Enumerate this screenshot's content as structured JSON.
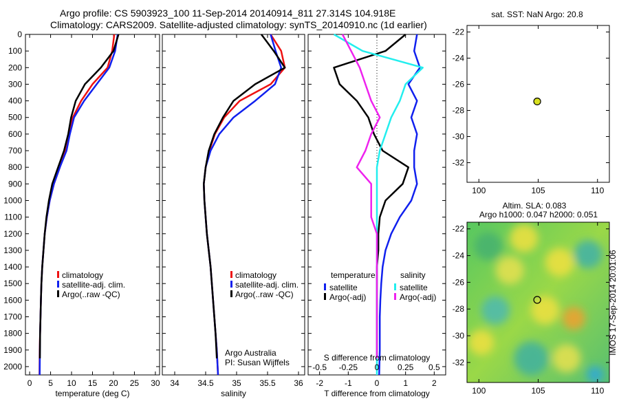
{
  "header": {
    "line1": "Argo profile: CS 5903923_100 11-Sep-2014 20140914_811 27.314S 104.918E",
    "line2": "Climatology: CARS2009. Satellite-adjusted climatology: synTS_20140910.nc (1d earlier)"
  },
  "credit": {
    "line1": "Argo Australia",
    "line2": "PI: Susan Wijffels"
  },
  "imos_stamp": "IMOS 17-Sep-2014 20:01:06",
  "colors": {
    "climatology": "#ee1111",
    "satellite": "#1020ee",
    "argo": "#000000",
    "sal_satellite": "#22eeee",
    "sal_argo": "#ee22ee",
    "marker": "#d8e020"
  },
  "chart_data": [
    {
      "type": "line",
      "xlabel": "temperature (deg C)",
      "ylabel": "",
      "xlim": [
        -1,
        31
      ],
      "ylim": [
        2050,
        0
      ],
      "xticks": [
        0,
        5,
        10,
        15,
        20,
        25,
        30
      ],
      "yticks": [
        0,
        100,
        200,
        300,
        400,
        500,
        600,
        700,
        800,
        900,
        1000,
        1100,
        1200,
        1300,
        1400,
        1500,
        1600,
        1700,
        1800,
        1900,
        2000
      ],
      "legend": [
        "climatology",
        "satellite-adj. clim.",
        "Argo(..raw -QC)"
      ],
      "legend_position": "lower-right",
      "series": [
        {
          "name": "climatology",
          "color": "#ee1111",
          "x": [
            20.2,
            19.7,
            18.6,
            15.0,
            12.3,
            10.3,
            9.3,
            8.4,
            7.2,
            5.8,
            4.8,
            4.1,
            3.6,
            3.3,
            3.0,
            2.8,
            2.7,
            2.6,
            2.5,
            2.4,
            2.35
          ],
          "y": [
            0,
            100,
            200,
            300,
            400,
            500,
            600,
            700,
            800,
            900,
            1000,
            1100,
            1200,
            1300,
            1400,
            1500,
            1600,
            1700,
            1800,
            1900,
            2050
          ]
        },
        {
          "name": "satellite-adj. clim.",
          "color": "#1020ee",
          "x": [
            21.0,
            20.4,
            19.0,
            16.0,
            13.0,
            10.6,
            9.6,
            8.8,
            7.2,
            5.8,
            4.8,
            4.1,
            3.6,
            3.3,
            3.0,
            2.8,
            2.7,
            2.6,
            2.5,
            2.45,
            2.4
          ],
          "y": [
            0,
            100,
            200,
            300,
            400,
            500,
            600,
            700,
            800,
            900,
            1000,
            1100,
            1200,
            1300,
            1400,
            1500,
            1600,
            1700,
            1800,
            1900,
            2050
          ]
        },
        {
          "name": "Argo(..raw -QC)",
          "color": "#000000",
          "x": [
            21.2,
            20.0,
            17.0,
            13.2,
            11.0,
            9.9,
            9.2,
            8.2,
            6.8,
            5.4,
            4.6,
            4.0,
            3.6,
            3.3,
            3.0,
            2.8,
            2.7,
            2.6,
            2.5,
            2.45
          ],
          "y": [
            0,
            100,
            200,
            300,
            400,
            500,
            600,
            700,
            800,
            900,
            1000,
            1100,
            1200,
            1300,
            1400,
            1500,
            1600,
            1700,
            1800,
            1950
          ]
        }
      ]
    },
    {
      "type": "line",
      "xlabel": "salinity",
      "ylabel": "",
      "xlim": [
        33.8,
        36.1
      ],
      "ylim": [
        2050,
        0
      ],
      "xticks": [
        34,
        34.5,
        35,
        35.5,
        36
      ],
      "legend": [
        "climatology",
        "satellite-adj. clim.",
        "Argo(..raw -QC)"
      ],
      "legend_position": "lower-right",
      "series": [
        {
          "name": "climatology",
          "color": "#ee1111",
          "x": [
            35.55,
            35.72,
            35.78,
            35.55,
            35.05,
            34.8,
            34.65,
            34.56,
            34.5,
            34.47,
            34.48,
            34.5,
            34.52,
            34.55,
            34.58,
            34.6,
            34.62,
            34.64,
            34.66,
            34.68,
            34.7
          ],
          "y": [
            0,
            100,
            200,
            300,
            400,
            500,
            600,
            700,
            800,
            900,
            1000,
            1100,
            1200,
            1300,
            1400,
            1500,
            1600,
            1700,
            1800,
            1900,
            2050
          ]
        },
        {
          "name": "satellite-adj. clim.",
          "color": "#1020ee",
          "x": [
            35.55,
            35.63,
            35.72,
            35.62,
            35.3,
            34.95,
            34.72,
            34.58,
            34.5,
            34.47,
            34.48,
            34.5,
            34.52,
            34.55,
            34.58,
            34.6,
            34.62,
            34.64,
            34.66,
            34.68,
            34.7
          ],
          "y": [
            0,
            100,
            200,
            300,
            400,
            500,
            600,
            700,
            800,
            900,
            1000,
            1100,
            1200,
            1300,
            1400,
            1500,
            1600,
            1700,
            1800,
            1900,
            2050
          ]
        },
        {
          "name": "Argo(..raw -QC)",
          "color": "#000000",
          "x": [
            35.4,
            35.6,
            35.78,
            35.3,
            34.95,
            34.78,
            34.64,
            34.55,
            34.5,
            34.47,
            34.48,
            34.5,
            34.52,
            34.55,
            34.58,
            34.6,
            34.62,
            34.64,
            34.66,
            34.68
          ],
          "y": [
            0,
            100,
            200,
            300,
            400,
            500,
            600,
            700,
            800,
            900,
            1000,
            1100,
            1200,
            1300,
            1400,
            1500,
            1600,
            1700,
            1800,
            1950
          ]
        }
      ]
    },
    {
      "type": "line",
      "xlabel": "T difference from climatology",
      "title": "S difference from climatology",
      "xlim": [
        -2.4,
        2.4
      ],
      "ylim": [
        2050,
        0
      ],
      "xticks": [
        -2,
        -1,
        0,
        1,
        2
      ],
      "top_axis_ticks": [
        -0.5,
        -0.25,
        0,
        0.25,
        0.5
      ],
      "legend_groups": [
        {
          "heading": "temperature",
          "entries": [
            "satellite",
            "Argo(-adj)"
          ]
        },
        {
          "heading": "salinity",
          "entries": [
            "satellite",
            "Argo(-adj)"
          ]
        }
      ],
      "legend_position": "lower-center",
      "series": [
        {
          "name": "temperature satellite",
          "color": "#1020ee",
          "x": [
            1.4,
            1.3,
            1.5,
            1.1,
            1.4,
            1.2,
            1.4,
            1.3,
            1.3,
            1.4,
            1.2,
            0.8,
            0.5,
            0.3,
            0.2,
            0.15,
            0.12,
            0.1,
            0.1,
            0.1,
            0.08
          ],
          "y": [
            0,
            100,
            200,
            300,
            400,
            500,
            600,
            700,
            800,
            900,
            1000,
            1100,
            1200,
            1300,
            1400,
            1500,
            1600,
            1700,
            1800,
            1900,
            2050
          ]
        },
        {
          "name": "temperature Argo(-adj)",
          "color": "#000000",
          "x": [
            1.0,
            0.3,
            -1.5,
            -1.3,
            -0.7,
            -0.3,
            -0.1,
            0.2,
            1.1,
            0.9,
            0.3,
            0.1,
            0.05,
            0.05,
            0.0,
            0.0,
            0.0,
            0.0,
            0.0,
            0.0
          ],
          "y": [
            0,
            100,
            200,
            300,
            400,
            500,
            600,
            700,
            800,
            900,
            1000,
            1100,
            1200,
            1300,
            1400,
            1500,
            1600,
            1700,
            1800,
            1950
          ]
        },
        {
          "name": "salinity satellite",
          "color": "#22eeee",
          "x": [
            -1.5,
            -0.5,
            1.6,
            1.0,
            0.8,
            0.5,
            0.3,
            0.1,
            0.0,
            0.0,
            0.0,
            0.0,
            0.0,
            0.0,
            0.0,
            0.0,
            0.0,
            0.0,
            0.0,
            0.0,
            0.0
          ],
          "y": [
            0,
            100,
            200,
            300,
            400,
            500,
            600,
            700,
            800,
            900,
            1000,
            1100,
            1200,
            1300,
            1400,
            1500,
            1600,
            1700,
            1800,
            1900,
            2050
          ]
        },
        {
          "name": "salinity Argo(-adj)",
          "color": "#ee22ee",
          "x": [
            -1.2,
            -0.9,
            -0.6,
            -0.4,
            -0.2,
            0.1,
            -0.2,
            -0.4,
            -0.7,
            -0.2,
            -0.2,
            -0.2,
            0.0,
            0.0,
            0.0,
            0.0,
            0.0,
            0.0,
            0.0,
            0.0
          ],
          "y": [
            0,
            100,
            200,
            300,
            400,
            500,
            600,
            700,
            800,
            900,
            1000,
            1100,
            1200,
            1300,
            1400,
            1500,
            1600,
            1700,
            1800,
            1950
          ]
        }
      ]
    },
    {
      "type": "scatter",
      "title": "sat. SST: NaN Argo: 20.8",
      "xlim": [
        99,
        111
      ],
      "ylim": [
        -33.5,
        -21.5
      ],
      "xticks": [
        100,
        105,
        110
      ],
      "yticks": [
        -22,
        -24,
        -26,
        -28,
        -30,
        -32
      ],
      "points": [
        {
          "x": 104.918,
          "y": -27.314
        }
      ]
    },
    {
      "type": "heatmap",
      "title": "Altim. SLA: 0.083",
      "subtitle": "Argo h1000: 0.047 h2000: 0.051",
      "xlim": [
        99,
        111
      ],
      "ylim": [
        -33.5,
        -21.5
      ],
      "xticks": [
        100,
        105,
        110
      ],
      "yticks": [
        -22,
        -24,
        -26,
        -28,
        -30,
        -32
      ],
      "points": [
        {
          "x": 104.918,
          "y": -27.314
        }
      ]
    }
  ]
}
